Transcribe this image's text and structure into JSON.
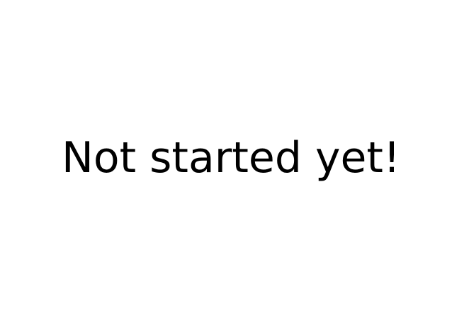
{
  "main": {
    "status_message": "Not started yet!"
  },
  "colors": {
    "background": "#ffffff",
    "text": "#000000"
  }
}
